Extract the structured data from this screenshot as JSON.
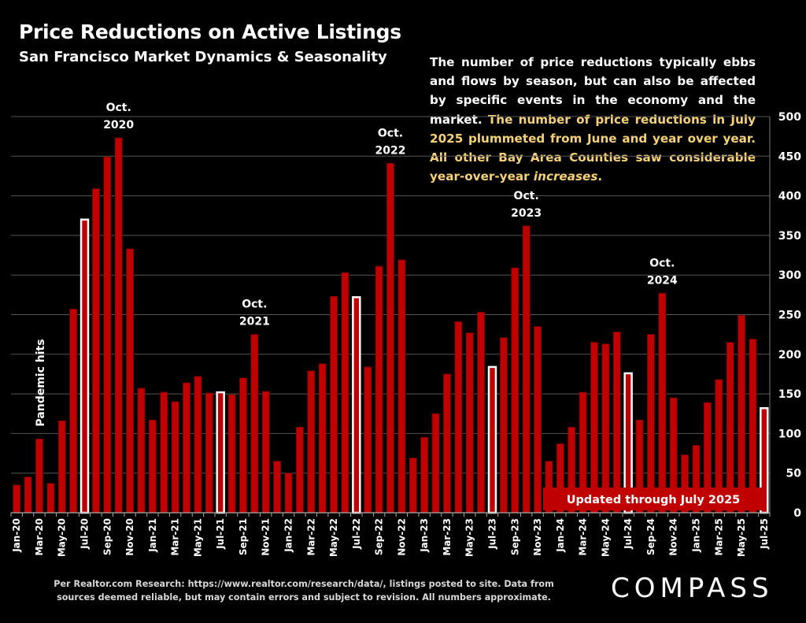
{
  "header": {
    "title": "Price Reductions on Active Listings",
    "subtitle": "San Francisco Market Dynamics & Seasonality"
  },
  "note": {
    "part1": "The number of price reductions typically ebbs and flows by season, but can also be affected by specific events in the economy and the market.",
    "part2": "The number of price reductions in July 2025 plummeted from June and year over year. All other Bay Area Counties saw considerable year-over-year",
    "part3": "increases",
    "part4": "."
  },
  "footer": {
    "source": "Per Realtor.com Research:  https://www.realtor.com/research/data/, listings posted to site. Data from sources deemed reliable, but may contain errors and subject to revision. All numbers approximate.",
    "logo": "COMPASS"
  },
  "colors": {
    "bar": "#c00000",
    "bar_edge": "#7a0000",
    "highlight_bar": "#ffffff",
    "highlight_text": "#f5d27a",
    "banner": "#c00000"
  },
  "chart_data": {
    "type": "bar",
    "ylim": [
      0,
      500
    ],
    "yticks": [
      0,
      50,
      100,
      150,
      200,
      250,
      300,
      350,
      400,
      450,
      500
    ],
    "y_axis_side": "right",
    "grid": true,
    "categories": [
      "Jan-20",
      "Feb-20",
      "Mar-20",
      "Apr-20",
      "May-20",
      "Jun-20",
      "Jul-20",
      "Aug-20",
      "Sep-20",
      "Oct-20",
      "Nov-20",
      "Dec-20",
      "Jan-21",
      "Feb-21",
      "Mar-21",
      "Apr-21",
      "May-21",
      "Jun-21",
      "Jul-21",
      "Aug-21",
      "Sep-21",
      "Oct-21",
      "Nov-21",
      "Dec-21",
      "Jan-22",
      "Feb-22",
      "Mar-22",
      "Apr-22",
      "May-22",
      "Jun-22",
      "Jul-22",
      "Aug-22",
      "Sep-22",
      "Oct-22",
      "Nov-22",
      "Dec-22",
      "Jan-23",
      "Feb-23",
      "Mar-23",
      "Apr-23",
      "May-23",
      "Jun-23",
      "Jul-23",
      "Aug-23",
      "Sep-23",
      "Oct-23",
      "Nov-23",
      "Dec-23",
      "Jan-24",
      "Feb-24",
      "Mar-24",
      "Apr-24",
      "May-24",
      "Jun-24",
      "Jul-24",
      "Aug-24",
      "Sep-24",
      "Oct-24",
      "Nov-24",
      "Dec-24",
      "Jan-25",
      "Feb-25",
      "Mar-25",
      "Apr-25",
      "May-25",
      "Jun-25",
      "Jul-25"
    ],
    "tick_labels": [
      "Jan-20",
      "Mar-20",
      "May-20",
      "Jul-20",
      "Sep-20",
      "Nov-20",
      "Jan-21",
      "Mar-21",
      "May-21",
      "Jul-21",
      "Sep-21",
      "Nov-21",
      "Jan-22",
      "Mar-22",
      "May-22",
      "Jul-22",
      "Sep-22",
      "Nov-22",
      "Jan-23",
      "Mar-23",
      "May-23",
      "Jul-23",
      "Sep-23",
      "Nov-23",
      "Jan-24",
      "Mar-24",
      "May-24",
      "Jul-24",
      "Sep-24",
      "Nov-24",
      "Jan-25",
      "Mar-25",
      "May-25",
      "Jul-25"
    ],
    "values": [
      35,
      45,
      93,
      37,
      116,
      257,
      370,
      409,
      449,
      473,
      333,
      157,
      117,
      152,
      140,
      164,
      172,
      151,
      152,
      149,
      170,
      225,
      153,
      65,
      50,
      108,
      179,
      188,
      273,
      303,
      272,
      184,
      311,
      441,
      319,
      69,
      95,
      125,
      175,
      241,
      227,
      253,
      184,
      221,
      309,
      362,
      235,
      65,
      87,
      108,
      152,
      215,
      213,
      228,
      176,
      117,
      225,
      277,
      145,
      73,
      85,
      139,
      168,
      215,
      249,
      219,
      132
    ],
    "highlight_months": [
      "Jul-20",
      "Jul-21",
      "Jul-22",
      "Jul-23",
      "Jul-24",
      "Jul-25"
    ],
    "annotations": [
      {
        "line1": "Oct.",
        "line2": "2020",
        "month": "Oct-20"
      },
      {
        "line1": "Oct.",
        "line2": "2021",
        "month": "Oct-21"
      },
      {
        "line1": "Oct.",
        "line2": "2022",
        "month": "Oct-22"
      },
      {
        "line1": "Oct.",
        "line2": "2023",
        "month": "Oct-23"
      },
      {
        "line1": "Oct.",
        "line2": "2024",
        "month": "Oct-24"
      }
    ],
    "pandemic_label": "Pandemic hits",
    "banner_label": "Updated through July 2025"
  }
}
